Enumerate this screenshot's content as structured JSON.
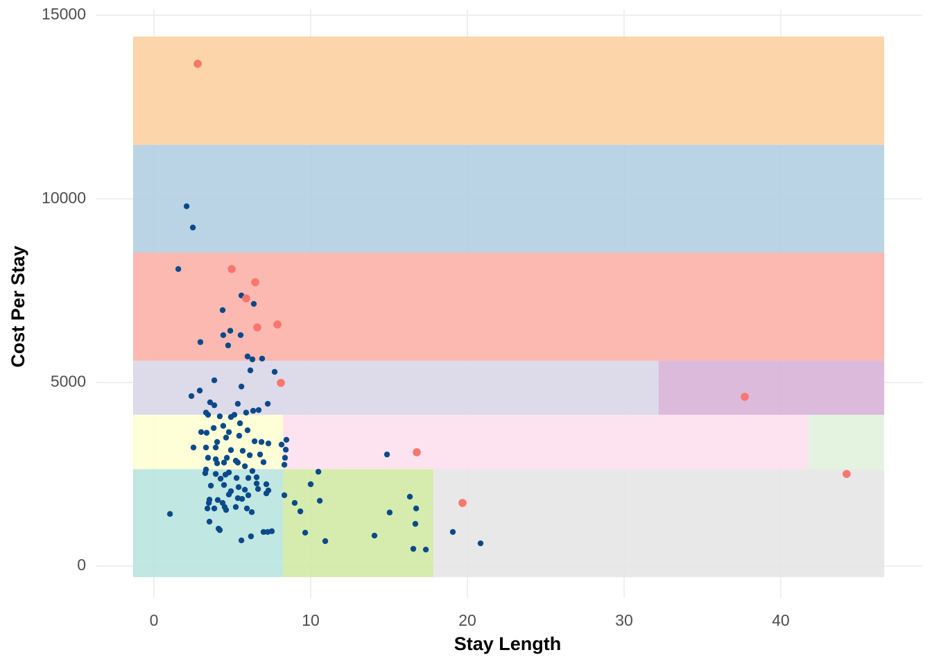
{
  "chart_data": {
    "type": "scatter",
    "x_label": "Stay Length",
    "y_label": "Cost Per Stay",
    "xlim": [
      -3.72,
      49.03
    ],
    "ylim": [
      -869,
      15152
    ],
    "xticks": [
      0,
      10,
      20,
      30,
      40
    ],
    "yticks": [
      0,
      5000,
      10000,
      15000
    ],
    "grid": true,
    "regions": [
      {
        "x0": -1.33,
        "x1": 46.6,
        "y0": 11470,
        "y1": 14420,
        "color": "#fdd0a2"
      },
      {
        "x0": -1.33,
        "x1": 46.6,
        "y0": 8540,
        "y1": 11470,
        "color": "#b3cfe3"
      },
      {
        "x0": -1.33,
        "x1": 46.6,
        "y0": 5590,
        "y1": 8540,
        "color": "#fbb1a8"
      },
      {
        "x0": -1.33,
        "x1": 32.2,
        "y0": 4120,
        "y1": 5590,
        "color": "#d9d7e8"
      },
      {
        "x0": 32.2,
        "x1": 46.6,
        "y0": 4120,
        "y1": 5590,
        "color": "#d8b3d8"
      },
      {
        "x0": -1.33,
        "x1": 8.23,
        "y0": 2640,
        "y1": 4120,
        "color": "#fefed3"
      },
      {
        "x0": 8.23,
        "x1": 41.8,
        "y0": 2640,
        "y1": 4120,
        "color": "#fde0ee"
      },
      {
        "x0": 41.8,
        "x1": 46.6,
        "y0": 2640,
        "y1": 4120,
        "color": "#e0f2dc"
      },
      {
        "x0": -1.33,
        "x1": 8.23,
        "y0": -300,
        "y1": 2640,
        "color": "#b9e4de"
      },
      {
        "x0": 8.23,
        "x1": 17.83,
        "y0": -300,
        "y1": 2640,
        "color": "#d2eaa5"
      },
      {
        "x0": 17.83,
        "x1": 46.6,
        "y0": -300,
        "y1": 2640,
        "color": "#e6e6e6"
      }
    ],
    "series": [
      {
        "color": "#0b4a8a",
        "x": [
          2.08,
          2.48,
          1.55,
          4.38,
          5.58,
          6.37,
          2.96,
          4.42,
          4.87,
          5.53,
          4.73,
          5.97,
          6.28,
          6.9,
          7.7,
          5.58,
          3.85,
          2.39,
          2.92,
          6.15,
          7.26,
          5.35,
          6.33,
          6.68,
          3.85,
          3.58,
          3.32,
          3.45,
          4.2,
          4.91,
          5.13,
          5.88,
          5.49,
          4.42,
          3.81,
          3.01,
          3.36,
          4.78,
          5.97,
          5.44,
          4.6,
          4.03,
          6.42,
          6.86,
          7.3,
          8.14,
          8.45,
          2.52,
          3.32,
          3.94,
          4.91,
          5.66,
          6.11,
          6.77,
          4.65,
          3.94,
          3.45,
          5.22,
          4.03,
          4.47,
          5.35,
          5.8,
          6.99,
          8.36,
          8.32,
          3.32,
          3.27,
          4.78,
          6.28,
          3.94,
          4.56,
          5.27,
          6.02,
          4.25,
          6.55,
          10.49,
          10.0,
          7.17,
          3.63,
          4.47,
          5.4,
          6.55,
          7.3,
          4.91,
          5.8,
          6.64,
          8.32,
          7.17,
          4.78,
          6.02,
          5.35,
          3.54,
          4.07,
          5.62,
          3.5,
          4.38,
          10.58,
          8.98,
          16.33,
          4.51,
          5.22,
          5.93,
          3.41,
          3.85,
          6.24,
          4.6,
          16.73,
          9.34,
          15.04,
          1.02,
          3.54,
          16.68,
          4.12,
          4.2,
          6.99,
          7.26,
          7.52,
          9.65,
          19.07,
          14.07,
          5.58,
          6.19,
          10.93,
          20.84,
          16.55,
          17.35,
          14.87,
          8.41
        ],
        "values": [
          9800,
          9220,
          8090,
          6970,
          7370,
          7140,
          6100,
          6290,
          6410,
          6290,
          6010,
          5710,
          5630,
          5650,
          5290,
          4890,
          5060,
          4630,
          4780,
          5330,
          4420,
          4420,
          4230,
          4250,
          4380,
          4460,
          4180,
          4120,
          4080,
          4060,
          4120,
          4180,
          3890,
          3820,
          3760,
          3650,
          3630,
          3650,
          3700,
          3550,
          3500,
          3380,
          3400,
          3380,
          3340,
          3310,
          3440,
          3230,
          3230,
          3230,
          3160,
          3140,
          3020,
          3040,
          2950,
          2910,
          2950,
          2870,
          2800,
          2820,
          2820,
          2720,
          2830,
          2950,
          2760,
          2630,
          2530,
          2550,
          2590,
          2510,
          2490,
          2400,
          2400,
          2380,
          2420,
          2570,
          2230,
          2230,
          2190,
          2210,
          2150,
          2250,
          2060,
          2040,
          2080,
          2100,
          1930,
          1980,
          1950,
          1930,
          1850,
          1810,
          1800,
          1830,
          1720,
          1720,
          1780,
          1720,
          1890,
          1610,
          1610,
          1570,
          1570,
          1570,
          1470,
          1530,
          1570,
          1490,
          1460,
          1420,
          1210,
          1150,
          1020,
          980,
          930,
          930,
          950,
          910,
          930,
          830,
          700,
          810,
          680,
          620,
          470,
          450,
          3040,
          3170
        ]
      },
      {
        "color": "#f8766d",
        "x": [
          2.79,
          4.96,
          6.46,
          5.88,
          6.59,
          7.88,
          8.1,
          16.77,
          19.69,
          37.7,
          44.2
        ],
        "values": [
          13680,
          8090,
          7730,
          7290,
          6500,
          6580,
          4990,
          3100,
          1720,
          4610,
          2510
        ]
      }
    ]
  }
}
